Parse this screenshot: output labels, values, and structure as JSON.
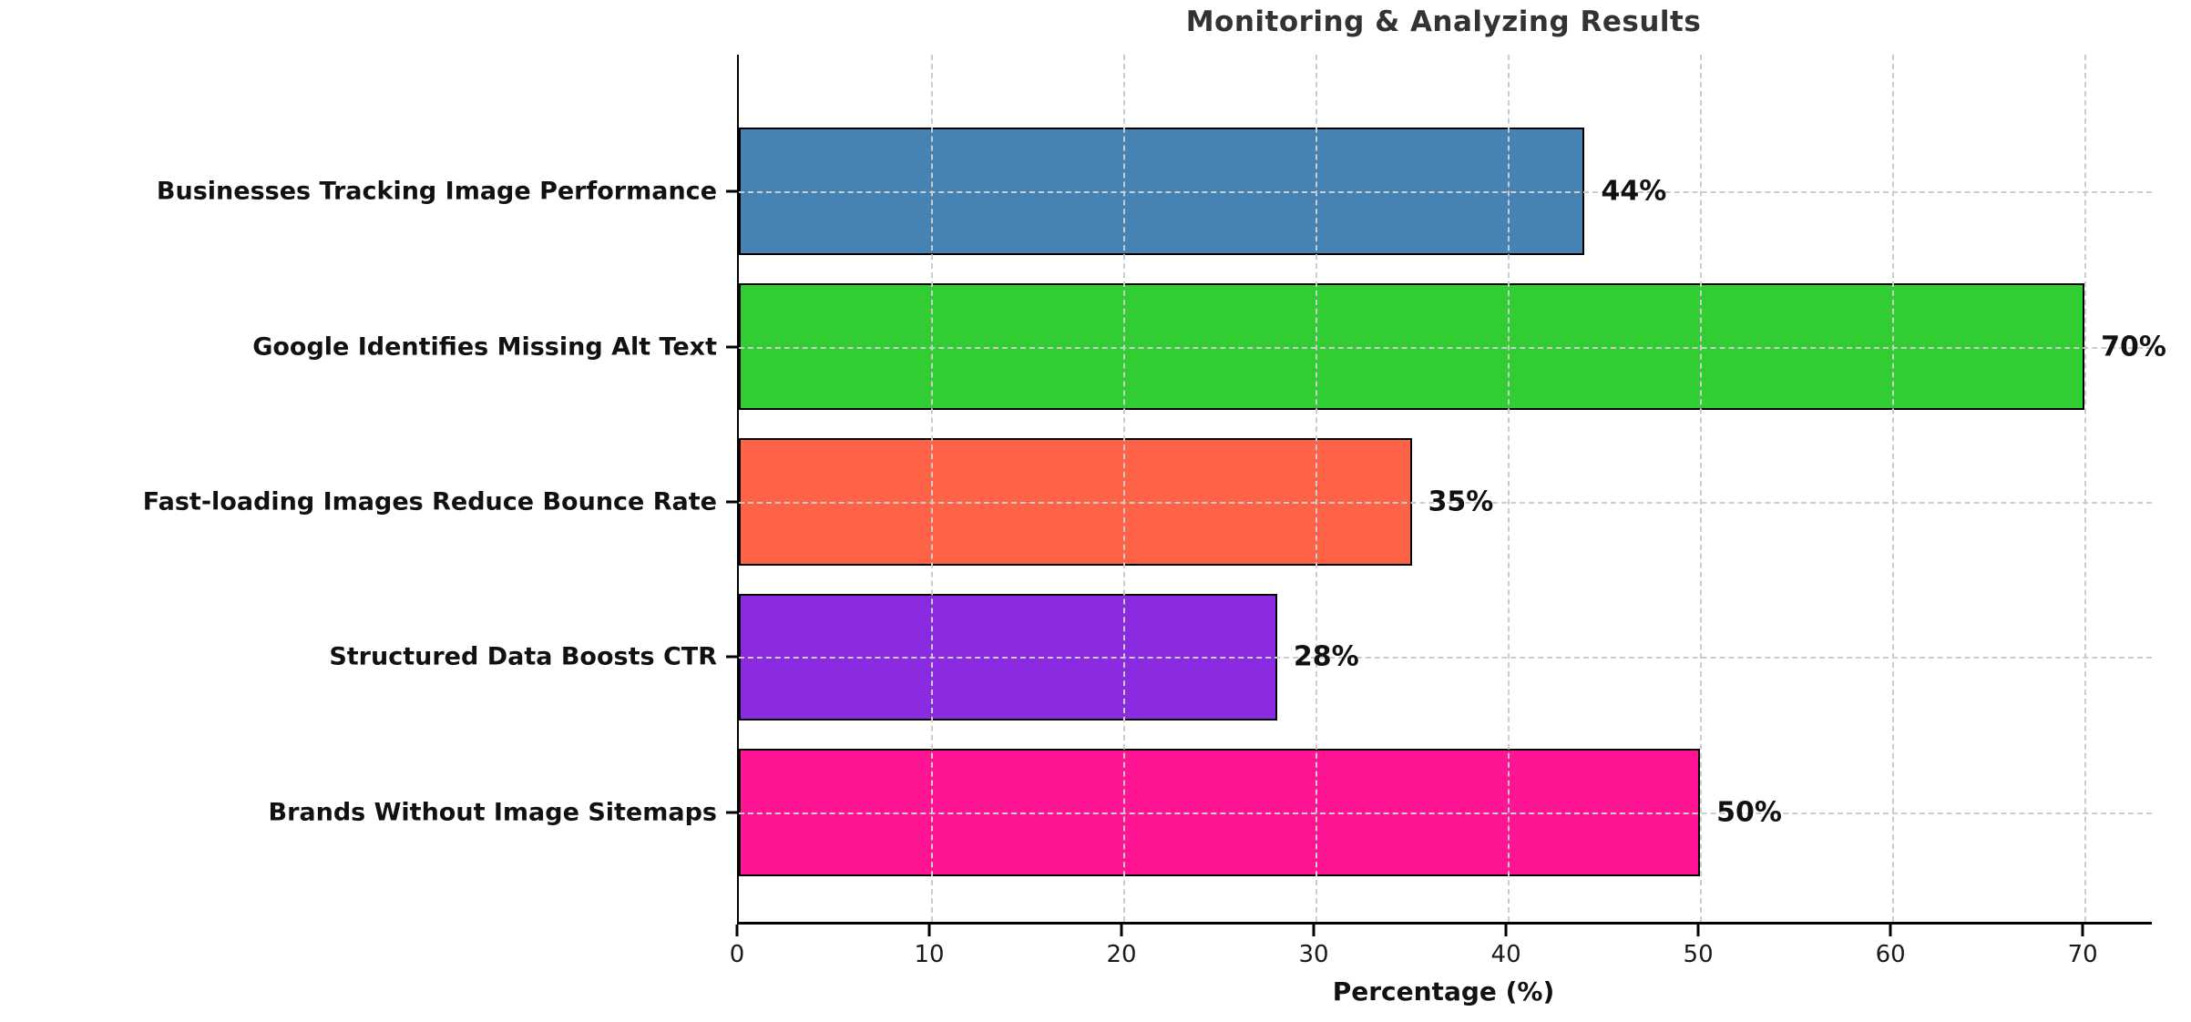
{
  "chart_data": {
    "type": "bar",
    "orientation": "horizontal",
    "title": "Monitoring & Analyzing Results",
    "xlabel": "Percentage (%)",
    "ylabel": "",
    "categories": [
      "Businesses Tracking Image Performance",
      "Google Identifies Missing Alt Text",
      "Fast-loading Images Reduce Bounce Rate",
      "Structured Data Boosts CTR",
      "Brands Without Image Sitemaps"
    ],
    "values": [
      44,
      70,
      35,
      28,
      50
    ],
    "value_labels": [
      "44%",
      "70%",
      "35%",
      "28%",
      "50%"
    ],
    "bar_colors": [
      "#4682B4",
      "#32CD32",
      "#FF6347",
      "#8A2BE2",
      "#FF1493"
    ],
    "bar_edge_color": "#000000",
    "x_ticks": [
      0,
      10,
      20,
      30,
      40,
      50,
      60,
      70
    ],
    "xlim": [
      0,
      73.5
    ],
    "grid": true,
    "grid_style": "dashed",
    "grid_color": "#cccccc",
    "legend": "none",
    "title_color": "#333333",
    "tick_label_color": "#1a1a1a",
    "label_color": "#111111",
    "background": "#ffffff"
  }
}
